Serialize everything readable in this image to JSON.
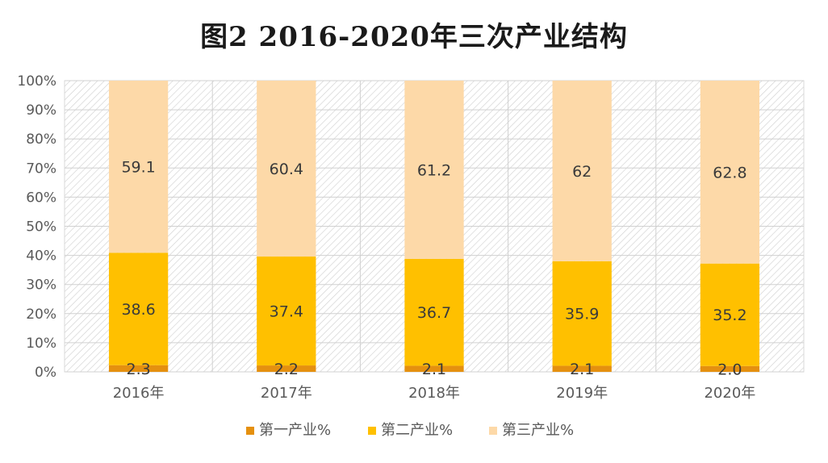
{
  "chart_data": {
    "type": "bar",
    "stacked": true,
    "title": "图2  2016-2020年三次产业结构",
    "categories": [
      "2016年",
      "2017年",
      "2018年",
      "2019年",
      "2020年"
    ],
    "series": [
      {
        "name": "第一产业%",
        "values": [
          2.3,
          2.2,
          2.1,
          2.1,
          2.0
        ],
        "color": "#E5900F",
        "labels": [
          "2.3",
          "2.2",
          "2.1",
          "2.1",
          "2.0"
        ]
      },
      {
        "name": "第二产业%",
        "values": [
          38.6,
          37.4,
          36.7,
          35.9,
          35.2
        ],
        "color": "#FFC000",
        "labels": [
          "38.6",
          "37.4",
          "36.7",
          "35.9",
          "35.2"
        ]
      },
      {
        "name": "第三产业%",
        "values": [
          59.1,
          60.4,
          61.2,
          62,
          62.8
        ],
        "color": "#FDD9A8",
        "labels": [
          "59.1",
          "60.4",
          "61.2",
          "62",
          "62.8"
        ]
      }
    ],
    "y_ticks": [
      "0%",
      "10%",
      "20%",
      "30%",
      "40%",
      "50%",
      "60%",
      "70%",
      "80%",
      "90%",
      "100%"
    ],
    "ylim": [
      0,
      100
    ],
    "grid": true,
    "legend_position": "bottom"
  }
}
